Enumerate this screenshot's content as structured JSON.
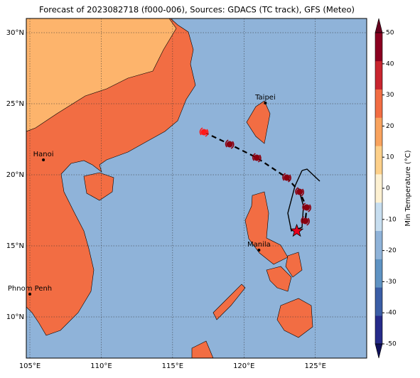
{
  "chart_data": {
    "type": "map",
    "title": "Forecast of 2023082718 (f000-006), Sources: GDACS (TC track), GFS (Meteo)",
    "xlim": [
      104.75,
      128.6
    ],
    "ylim": [
      7.1,
      31
    ],
    "xticks": [
      {
        "value": 105,
        "label": "105°E"
      },
      {
        "value": 110,
        "label": "110°E"
      },
      {
        "value": 115,
        "label": "115°E"
      },
      {
        "value": 120,
        "label": "120°E"
      },
      {
        "value": 125,
        "label": "125°E"
      }
    ],
    "yticks": [
      {
        "value": 10,
        "label": "10°N"
      },
      {
        "value": 15,
        "label": "15°N"
      },
      {
        "value": 20,
        "label": "20°N"
      },
      {
        "value": 25,
        "label": "25°N"
      },
      {
        "value": 30,
        "label": "30°N"
      }
    ],
    "grid": true,
    "ocean_color": "#8fb3d9",
    "land_color": "#f26d43",
    "land_warm_color": "#fdb46c",
    "cities": [
      {
        "name": "Taipei",
        "lon": 121.5,
        "lat": 25.05
      },
      {
        "name": "Hanoi",
        "lon": 105.95,
        "lat": 21.05
      },
      {
        "name": "Manila",
        "lon": 121.05,
        "lat": 14.7
      },
      {
        "name": "Phnom Penh",
        "lon": 105.0,
        "lat": 11.6
      }
    ],
    "track": {
      "lon": [
        117.2,
        119.0,
        120.9,
        123.0,
        123.9,
        124.4,
        124.3
      ],
      "lat": [
        23.0,
        22.15,
        21.2,
        19.8,
        18.8,
        17.7,
        16.75
      ],
      "color": "#8b0010",
      "first_color": "#ff1a1a"
    },
    "current": {
      "lon": 123.7,
      "lat": 16.05,
      "color": "#e8001c"
    },
    "colorbar": {
      "label": "Min Temperature (°C)",
      "lim": [
        -50,
        50
      ],
      "ticks": [
        -50,
        -40,
        -30,
        -20,
        -10,
        0,
        10,
        20,
        30,
        40,
        50
      ],
      "colors": [
        "#262b8a",
        "#3b5ea6",
        "#5f93c3",
        "#8fb3d9",
        "#c7def0",
        "#fdf1d2",
        "#fdd08a",
        "#f9a35e",
        "#f26d43",
        "#c9252f",
        "#8b0021"
      ],
      "under_color": "#10105a",
      "over_color": "#67001f"
    }
  }
}
